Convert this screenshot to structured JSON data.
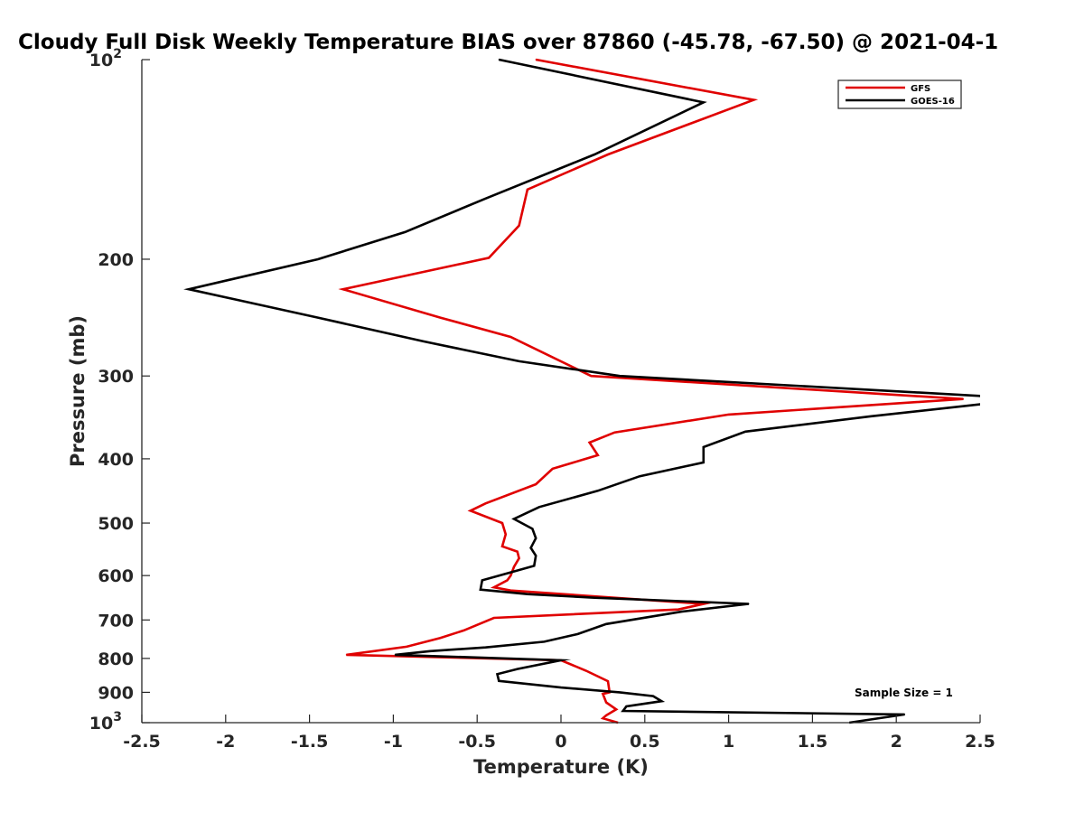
{
  "chart_data": {
    "type": "line",
    "title": "Cloudy Full Disk Weekly Temperature BIAS over 87860 (-45.78, -67.50) @ 2021-04-1",
    "xlabel": "Temperature (K)",
    "ylabel": "Pressure (mb)",
    "xlim": [
      -2.5,
      2.5
    ],
    "ylim": [
      100,
      1000
    ],
    "yscale": "log",
    "y_reversed": true,
    "grid": false,
    "legend_position": "top-right",
    "x_ticks": [
      "-2.5",
      "-2",
      "-1.5",
      "-1",
      "-0.5",
      "0",
      "0.5",
      "1",
      "1.5",
      "2",
      "2.5"
    ],
    "x_tick_values": [
      -2.5,
      -2,
      -1.5,
      -1,
      -0.5,
      0,
      0.5,
      1,
      1.5,
      2,
      2.5
    ],
    "y_ticks": [
      {
        "value": 100,
        "base": "10",
        "exp": "2"
      },
      {
        "value": 200,
        "base": "200",
        "exp": ""
      },
      {
        "value": 300,
        "base": "300",
        "exp": ""
      },
      {
        "value": 400,
        "base": "400",
        "exp": ""
      },
      {
        "value": 500,
        "base": "500",
        "exp": ""
      },
      {
        "value": 600,
        "base": "600",
        "exp": ""
      },
      {
        "value": 700,
        "base": "700",
        "exp": ""
      },
      {
        "value": 800,
        "base": "800",
        "exp": ""
      },
      {
        "value": 900,
        "base": "900",
        "exp": ""
      },
      {
        "value": 1000,
        "base": "10",
        "exp": "3"
      }
    ],
    "annotation": "Sample Size = 1",
    "series": [
      {
        "name": "GFS",
        "color": "#e00000",
        "points": [
          [
            -0.15,
            100
          ],
          [
            1.15,
            115
          ],
          [
            0.28,
            139
          ],
          [
            -0.2,
            157
          ],
          [
            -0.25,
            178
          ],
          [
            -0.43,
            199
          ],
          [
            -1.3,
            222
          ],
          [
            -0.72,
            245
          ],
          [
            -0.3,
            262
          ],
          [
            0.18,
            300
          ],
          [
            2.4,
            325
          ],
          [
            1.0,
            343
          ],
          [
            0.32,
            365
          ],
          [
            0.17,
            378
          ],
          [
            0.22,
            395
          ],
          [
            -0.05,
            414
          ],
          [
            -0.15,
            437
          ],
          [
            -0.45,
            467
          ],
          [
            -0.54,
            479
          ],
          [
            -0.35,
            500
          ],
          [
            -0.33,
            520
          ],
          [
            -0.35,
            542
          ],
          [
            -0.26,
            552
          ],
          [
            -0.25,
            565
          ],
          [
            -0.28,
            582
          ],
          [
            -0.3,
            600
          ],
          [
            -0.32,
            610
          ],
          [
            -0.4,
            625
          ],
          [
            -0.3,
            632
          ],
          [
            0.85,
            662
          ],
          [
            0.7,
            675
          ],
          [
            -0.4,
            695
          ],
          [
            -0.58,
            726
          ],
          [
            -0.72,
            745
          ],
          [
            -0.92,
            768
          ],
          [
            -1.28,
            790
          ],
          [
            0.0,
            805
          ],
          [
            0.15,
            835
          ],
          [
            0.28,
            866
          ],
          [
            0.29,
            900
          ],
          [
            0.25,
            905
          ],
          [
            0.27,
            932
          ],
          [
            0.33,
            955
          ],
          [
            0.27,
            975
          ],
          [
            0.25,
            985
          ],
          [
            0.34,
            1000
          ]
        ]
      },
      {
        "name": "GOES-16",
        "color": "#000000",
        "points": [
          [
            -0.37,
            100
          ],
          [
            0.85,
            116
          ],
          [
            0.2,
            139
          ],
          [
            -0.45,
            162
          ],
          [
            -0.93,
            182
          ],
          [
            -1.45,
            200
          ],
          [
            -2.22,
            222
          ],
          [
            -1.45,
            245
          ],
          [
            -0.82,
            266
          ],
          [
            -0.25,
            285
          ],
          [
            0.35,
            300
          ],
          [
            2.55,
            322
          ],
          [
            2.55,
            330
          ],
          [
            1.85,
            345
          ],
          [
            1.1,
            364
          ],
          [
            0.85,
            384
          ],
          [
            0.85,
            405
          ],
          [
            0.47,
            425
          ],
          [
            0.22,
            447
          ],
          [
            -0.13,
            473
          ],
          [
            -0.28,
            493
          ],
          [
            -0.17,
            510
          ],
          [
            -0.15,
            527
          ],
          [
            -0.18,
            545
          ],
          [
            -0.15,
            560
          ],
          [
            -0.16,
            580
          ],
          [
            -0.47,
            610
          ],
          [
            -0.48,
            630
          ],
          [
            -0.2,
            640
          ],
          [
            0.2,
            648
          ],
          [
            1.12,
            662
          ],
          [
            0.72,
            680
          ],
          [
            0.27,
            710
          ],
          [
            0.1,
            735
          ],
          [
            -0.1,
            755
          ],
          [
            -0.45,
            770
          ],
          [
            -0.78,
            780
          ],
          [
            -0.99,
            790
          ],
          [
            0.0,
            805
          ],
          [
            -0.26,
            830
          ],
          [
            -0.38,
            845
          ],
          [
            -0.37,
            865
          ],
          [
            0.0,
            885
          ],
          [
            0.35,
            900
          ],
          [
            0.55,
            912
          ],
          [
            0.6,
            928
          ],
          [
            0.39,
            945
          ],
          [
            0.37,
            960
          ],
          [
            2.05,
            972
          ],
          [
            1.72,
            1000
          ]
        ]
      }
    ]
  }
}
